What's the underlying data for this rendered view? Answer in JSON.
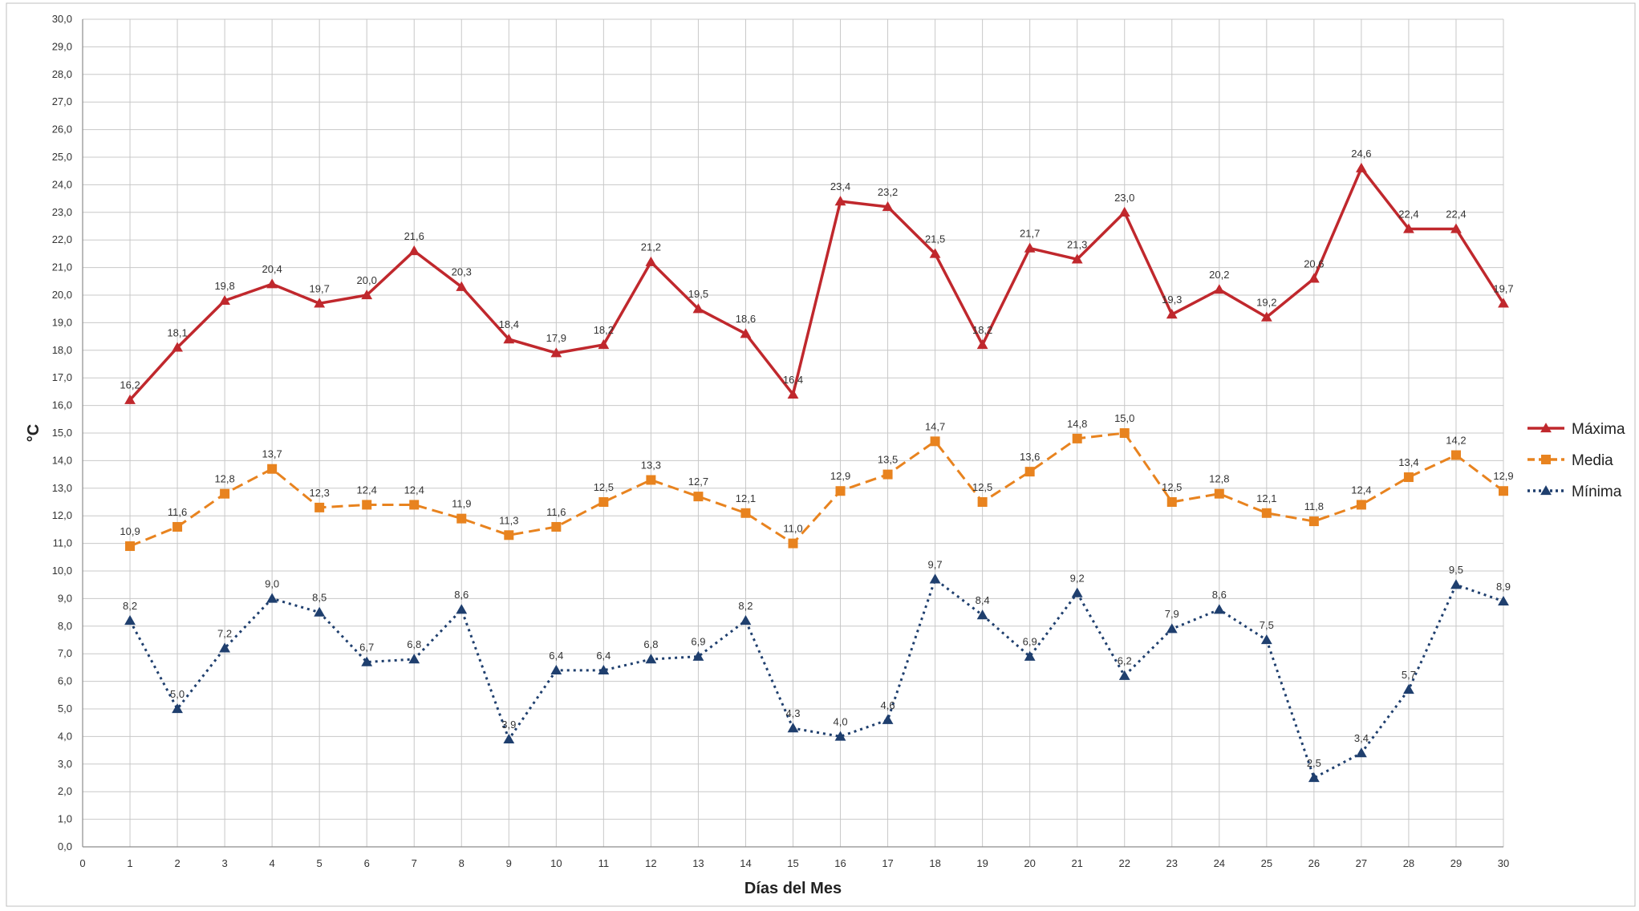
{
  "chart_data": {
    "type": "line",
    "title": "",
    "xlabel": "Días del Mes",
    "ylabel": "°C",
    "xlim": [
      0,
      30
    ],
    "ylim": [
      0,
      30
    ],
    "ytick_step": 1,
    "ytick_format": "comma-1-decimal",
    "grid": true,
    "legend_position": "right",
    "x": [
      1,
      2,
      3,
      4,
      5,
      6,
      7,
      8,
      9,
      10,
      11,
      12,
      13,
      14,
      15,
      16,
      17,
      18,
      19,
      20,
      21,
      22,
      23,
      24,
      25,
      26,
      27,
      28,
      29,
      30
    ],
    "series": [
      {
        "name": "Máxima",
        "color": "#c0282d",
        "line_style": "solid",
        "marker": "triangle",
        "values": [
          16.2,
          18.1,
          19.8,
          20.4,
          19.7,
          20.0,
          21.6,
          20.3,
          18.4,
          17.9,
          18.2,
          21.2,
          19.5,
          18.6,
          16.4,
          23.4,
          23.2,
          21.5,
          18.2,
          21.7,
          21.3,
          23.0,
          19.3,
          20.2,
          19.2,
          20.6,
          24.6,
          22.4,
          22.4,
          19.7
        ]
      },
      {
        "name": "Media",
        "color": "#e8831f",
        "line_style": "dashed",
        "marker": "square",
        "values": [
          10.9,
          11.6,
          12.8,
          13.7,
          12.3,
          12.4,
          12.4,
          11.9,
          11.3,
          11.6,
          12.5,
          13.3,
          12.7,
          12.1,
          11.0,
          12.9,
          13.5,
          14.7,
          12.5,
          13.6,
          14.8,
          15.0,
          12.5,
          12.8,
          12.1,
          11.8,
          12.4,
          13.4,
          14.2,
          12.9
        ]
      },
      {
        "name": "Mínima",
        "color": "#1f3f6e",
        "line_style": "dotted",
        "marker": "triangle",
        "values": [
          8.2,
          5.0,
          7.2,
          9.0,
          8.5,
          6.7,
          6.8,
          8.6,
          3.9,
          6.4,
          6.4,
          6.8,
          6.9,
          8.2,
          4.3,
          4.0,
          4.6,
          9.7,
          8.4,
          6.9,
          9.2,
          6.2,
          7.9,
          8.6,
          7.5,
          2.5,
          3.4,
          5.7,
          9.5,
          8.9
        ]
      }
    ]
  }
}
